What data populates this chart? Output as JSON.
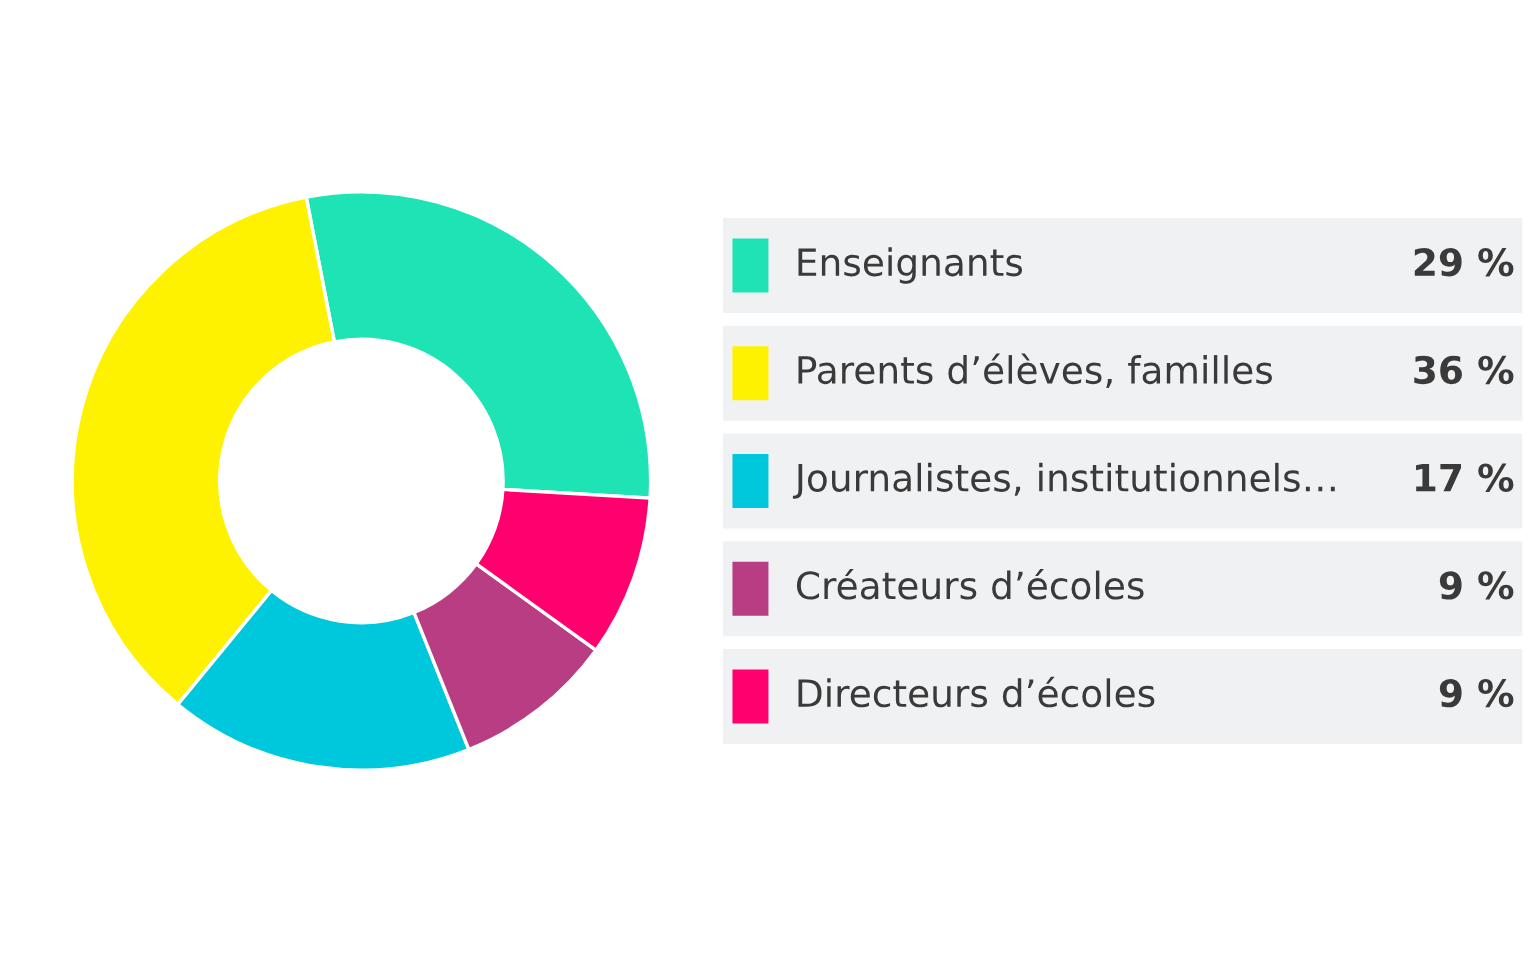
{
  "chart_data": {
    "type": "donut",
    "categories": [
      "Enseignants",
      "Parents d’élèves, familles",
      "Journalistes, institutionnels…",
      "Créateurs d’écoles",
      "Directeurs d’écoles"
    ],
    "values": [
      29,
      36,
      17,
      9,
      9
    ],
    "value_labels": [
      "29 %",
      "36 %",
      "17 %",
      "9 %",
      "9 %"
    ],
    "colors": [
      "#1de3b5",
      "#fff200",
      "#00c8dc",
      "#b83d82",
      "#ff006e"
    ],
    "legend": "right"
  }
}
